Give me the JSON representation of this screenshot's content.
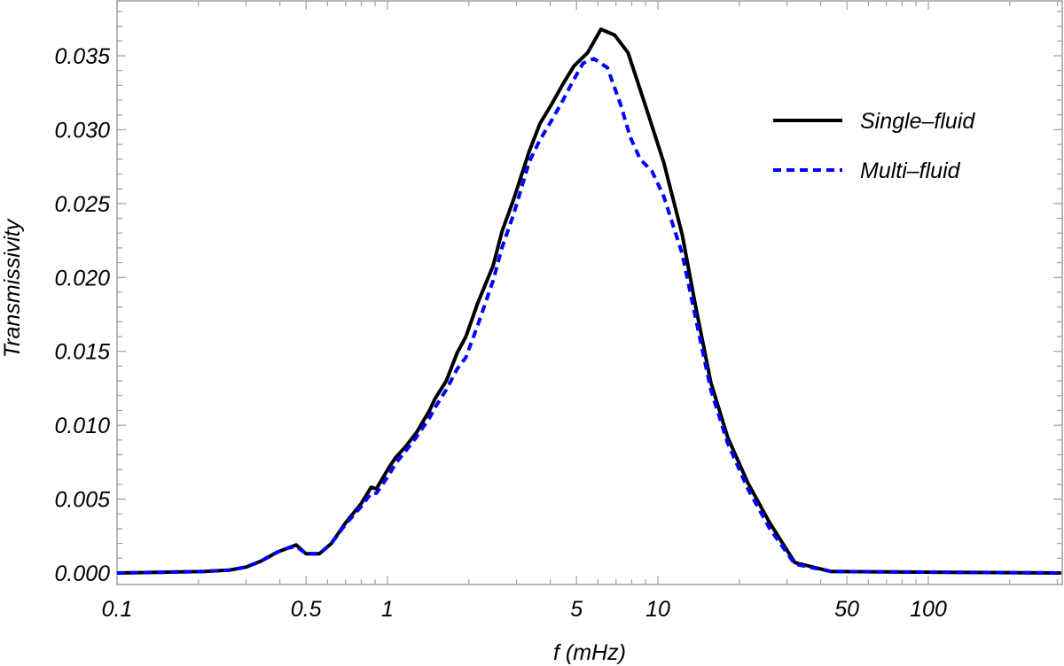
{
  "chart_data": {
    "type": "line",
    "title": "",
    "xlabel": "f (mHz)",
    "ylabel": "Transmissivity",
    "xscale": "log",
    "xlim": [
      0.1,
      310
    ],
    "ylim": [
      0.0,
      0.0388
    ],
    "grid": false,
    "legend_position": "upper right",
    "x_ticks": [
      {
        "value": 0.1,
        "label": "0.1"
      },
      {
        "value": 0.5,
        "label": "0.5"
      },
      {
        "value": 1,
        "label": "1"
      },
      {
        "value": 5,
        "label": "5"
      },
      {
        "value": 10,
        "label": "10"
      },
      {
        "value": 50,
        "label": "50"
      },
      {
        "value": 100,
        "label": "100"
      }
    ],
    "y_ticks": [
      {
        "value": 0.0,
        "label": "0.000"
      },
      {
        "value": 0.005,
        "label": "0.005"
      },
      {
        "value": 0.01,
        "label": "0.010"
      },
      {
        "value": 0.015,
        "label": "0.015"
      },
      {
        "value": 0.02,
        "label": "0.020"
      },
      {
        "value": 0.025,
        "label": "0.025"
      },
      {
        "value": 0.03,
        "label": "0.030"
      },
      {
        "value": 0.035,
        "label": "0.035"
      }
    ],
    "series": [
      {
        "name": "Single-fluid",
        "color": "#000000",
        "style": "solid",
        "x": [
          0.1,
          0.21,
          0.26,
          0.3,
          0.34,
          0.39,
          0.43,
          0.46,
          0.5,
          0.56,
          0.62,
          0.7,
          0.8,
          0.87,
          0.91,
          1.01,
          1.07,
          1.16,
          1.28,
          1.43,
          1.5,
          1.65,
          1.81,
          1.95,
          2.16,
          2.46,
          2.65,
          2.93,
          3.34,
          3.66,
          4.04,
          4.46,
          4.89,
          5.49,
          6.16,
          6.92,
          7.76,
          9.04,
          10.5,
          12.3,
          13.8,
          15.7,
          18.1,
          21.5,
          25.9,
          32.1,
          43.7,
          310
        ],
        "y": [
          0.0,
          0.0001,
          0.0002,
          0.0004,
          0.0008,
          0.0014,
          0.0017,
          0.0019,
          0.0013,
          0.0013,
          0.002,
          0.0034,
          0.0047,
          0.0058,
          0.0057,
          0.0071,
          0.0078,
          0.0085,
          0.0095,
          0.011,
          0.0118,
          0.013,
          0.0149,
          0.016,
          0.0183,
          0.0208,
          0.0231,
          0.0253,
          0.0285,
          0.0304,
          0.0317,
          0.0331,
          0.0343,
          0.0352,
          0.0368,
          0.0364,
          0.0352,
          0.0315,
          0.0278,
          0.0229,
          0.018,
          0.0129,
          0.0092,
          0.0061,
          0.0034,
          0.0007,
          0.0001,
          0.0
        ]
      },
      {
        "name": "Multi-fluid",
        "color": "#0000ff",
        "style": "dashed",
        "x": [
          0.1,
          0.21,
          0.26,
          0.3,
          0.34,
          0.39,
          0.43,
          0.46,
          0.5,
          0.56,
          0.62,
          0.7,
          0.8,
          0.87,
          0.91,
          1.01,
          1.07,
          1.16,
          1.28,
          1.43,
          1.5,
          1.65,
          1.81,
          1.95,
          2.16,
          2.46,
          2.65,
          2.93,
          3.34,
          3.66,
          4.04,
          4.46,
          4.89,
          5.29,
          5.8,
          6.5,
          7.25,
          7.9,
          8.6,
          9.5,
          10.5,
          12.3,
          13.8,
          15.7,
          18.1,
          21.5,
          25.9,
          32.1,
          43.7,
          310
        ],
        "y": [
          0.0,
          0.0001,
          0.0002,
          0.0004,
          0.0008,
          0.0014,
          0.0017,
          0.0018,
          0.0013,
          0.0013,
          0.002,
          0.0033,
          0.0045,
          0.0054,
          0.0054,
          0.0066,
          0.0074,
          0.0082,
          0.0092,
          0.0105,
          0.0112,
          0.0124,
          0.0138,
          0.0146,
          0.0168,
          0.0198,
          0.022,
          0.0243,
          0.0278,
          0.0293,
          0.0306,
          0.032,
          0.0334,
          0.0345,
          0.0348,
          0.0342,
          0.0318,
          0.0295,
          0.028,
          0.0272,
          0.0255,
          0.0216,
          0.0172,
          0.0124,
          0.0088,
          0.0057,
          0.003,
          0.0006,
          0.0001,
          0.0
        ]
      }
    ]
  },
  "legend": {
    "items": [
      {
        "label": "Single-fluid",
        "color": "#000000",
        "style": "solid"
      },
      {
        "label": "Multi-fluid",
        "color": "#0000ff",
        "style": "dashed"
      }
    ]
  },
  "axes": {
    "xlabel": "f (mHz)",
    "ylabel": "Transmissivity"
  }
}
